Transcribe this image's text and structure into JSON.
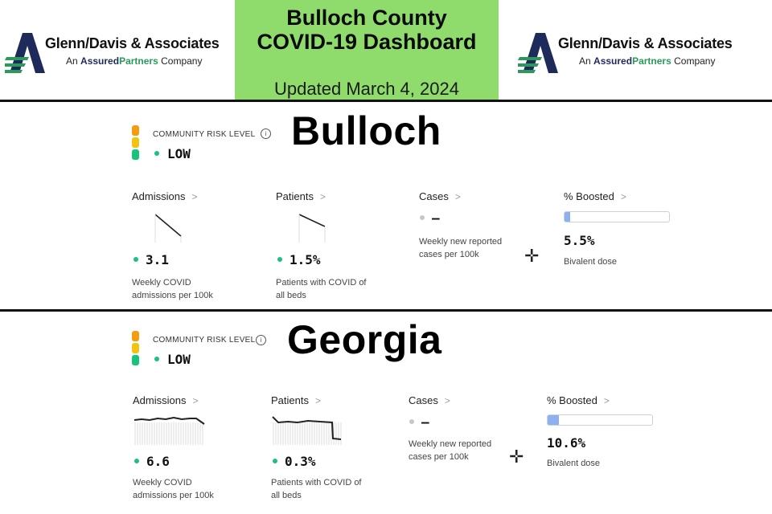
{
  "header": {
    "logo_left": {
      "company": "Glenn/Davis & Associates",
      "tag_an": "An",
      "tag_assured": "Assured",
      "tag_partners": "Partners",
      "tag_company": "Company"
    },
    "logo_right": {
      "company": "Glenn/Davis & Associates",
      "tag_an": "An",
      "tag_assured": "Assured",
      "tag_partners": "Partners",
      "tag_company": "Company"
    },
    "title_line1": "Bulloch County",
    "title_line2": "COVID-19 Dashboard",
    "updated": "Updated March 4, 2024",
    "title_bg": "#8fdc6d"
  },
  "colors": {
    "risk_high": "#f39c12",
    "risk_med": "#f1c40f",
    "risk_low": "#19c37d",
    "dot_low": "#19c37d",
    "boost_fill": "#8fb0f0"
  },
  "bulloch": {
    "name": "Bulloch",
    "risk_label": "COMMUNITY RISK LEVEL",
    "risk_value": "LOW",
    "admissions": {
      "label": "Admissions",
      "value": "3.1",
      "desc1": "Weekly COVID",
      "desc2": "admissions per 100k"
    },
    "patients": {
      "label": "Patients",
      "value": "1.5%",
      "desc1": "Patients with COVID of",
      "desc2": "all beds"
    },
    "cases": {
      "label": "Cases",
      "value": "–",
      "desc1": "Weekly new reported",
      "desc2": "cases per 100k"
    },
    "boosted": {
      "label": "% Boosted",
      "value": "5.5%",
      "desc": "Bivalent dose",
      "fraction": 0.055
    }
  },
  "georgia": {
    "name": "Georgia",
    "risk_label": "COMMUNITY RISK LEVEL",
    "risk_value": "LOW",
    "admissions": {
      "label": "Admissions",
      "value": "6.6",
      "desc1": "Weekly COVID",
      "desc2": "admissions per 100k"
    },
    "patients": {
      "label": "Patients",
      "value": "0.3%",
      "desc1": "Patients with COVID of",
      "desc2": "all beds"
    },
    "cases": {
      "label": "Cases",
      "value": "–",
      "desc1": "Weekly new reported",
      "desc2": "cases per 100k"
    },
    "boosted": {
      "label": "% Boosted",
      "value": "10.6%",
      "desc": "Bivalent dose",
      "fraction": 0.106
    }
  },
  "icons": {
    "info": "info-icon",
    "chevron": "chevron-right-icon",
    "plus": "crosshair-plus-icon"
  }
}
